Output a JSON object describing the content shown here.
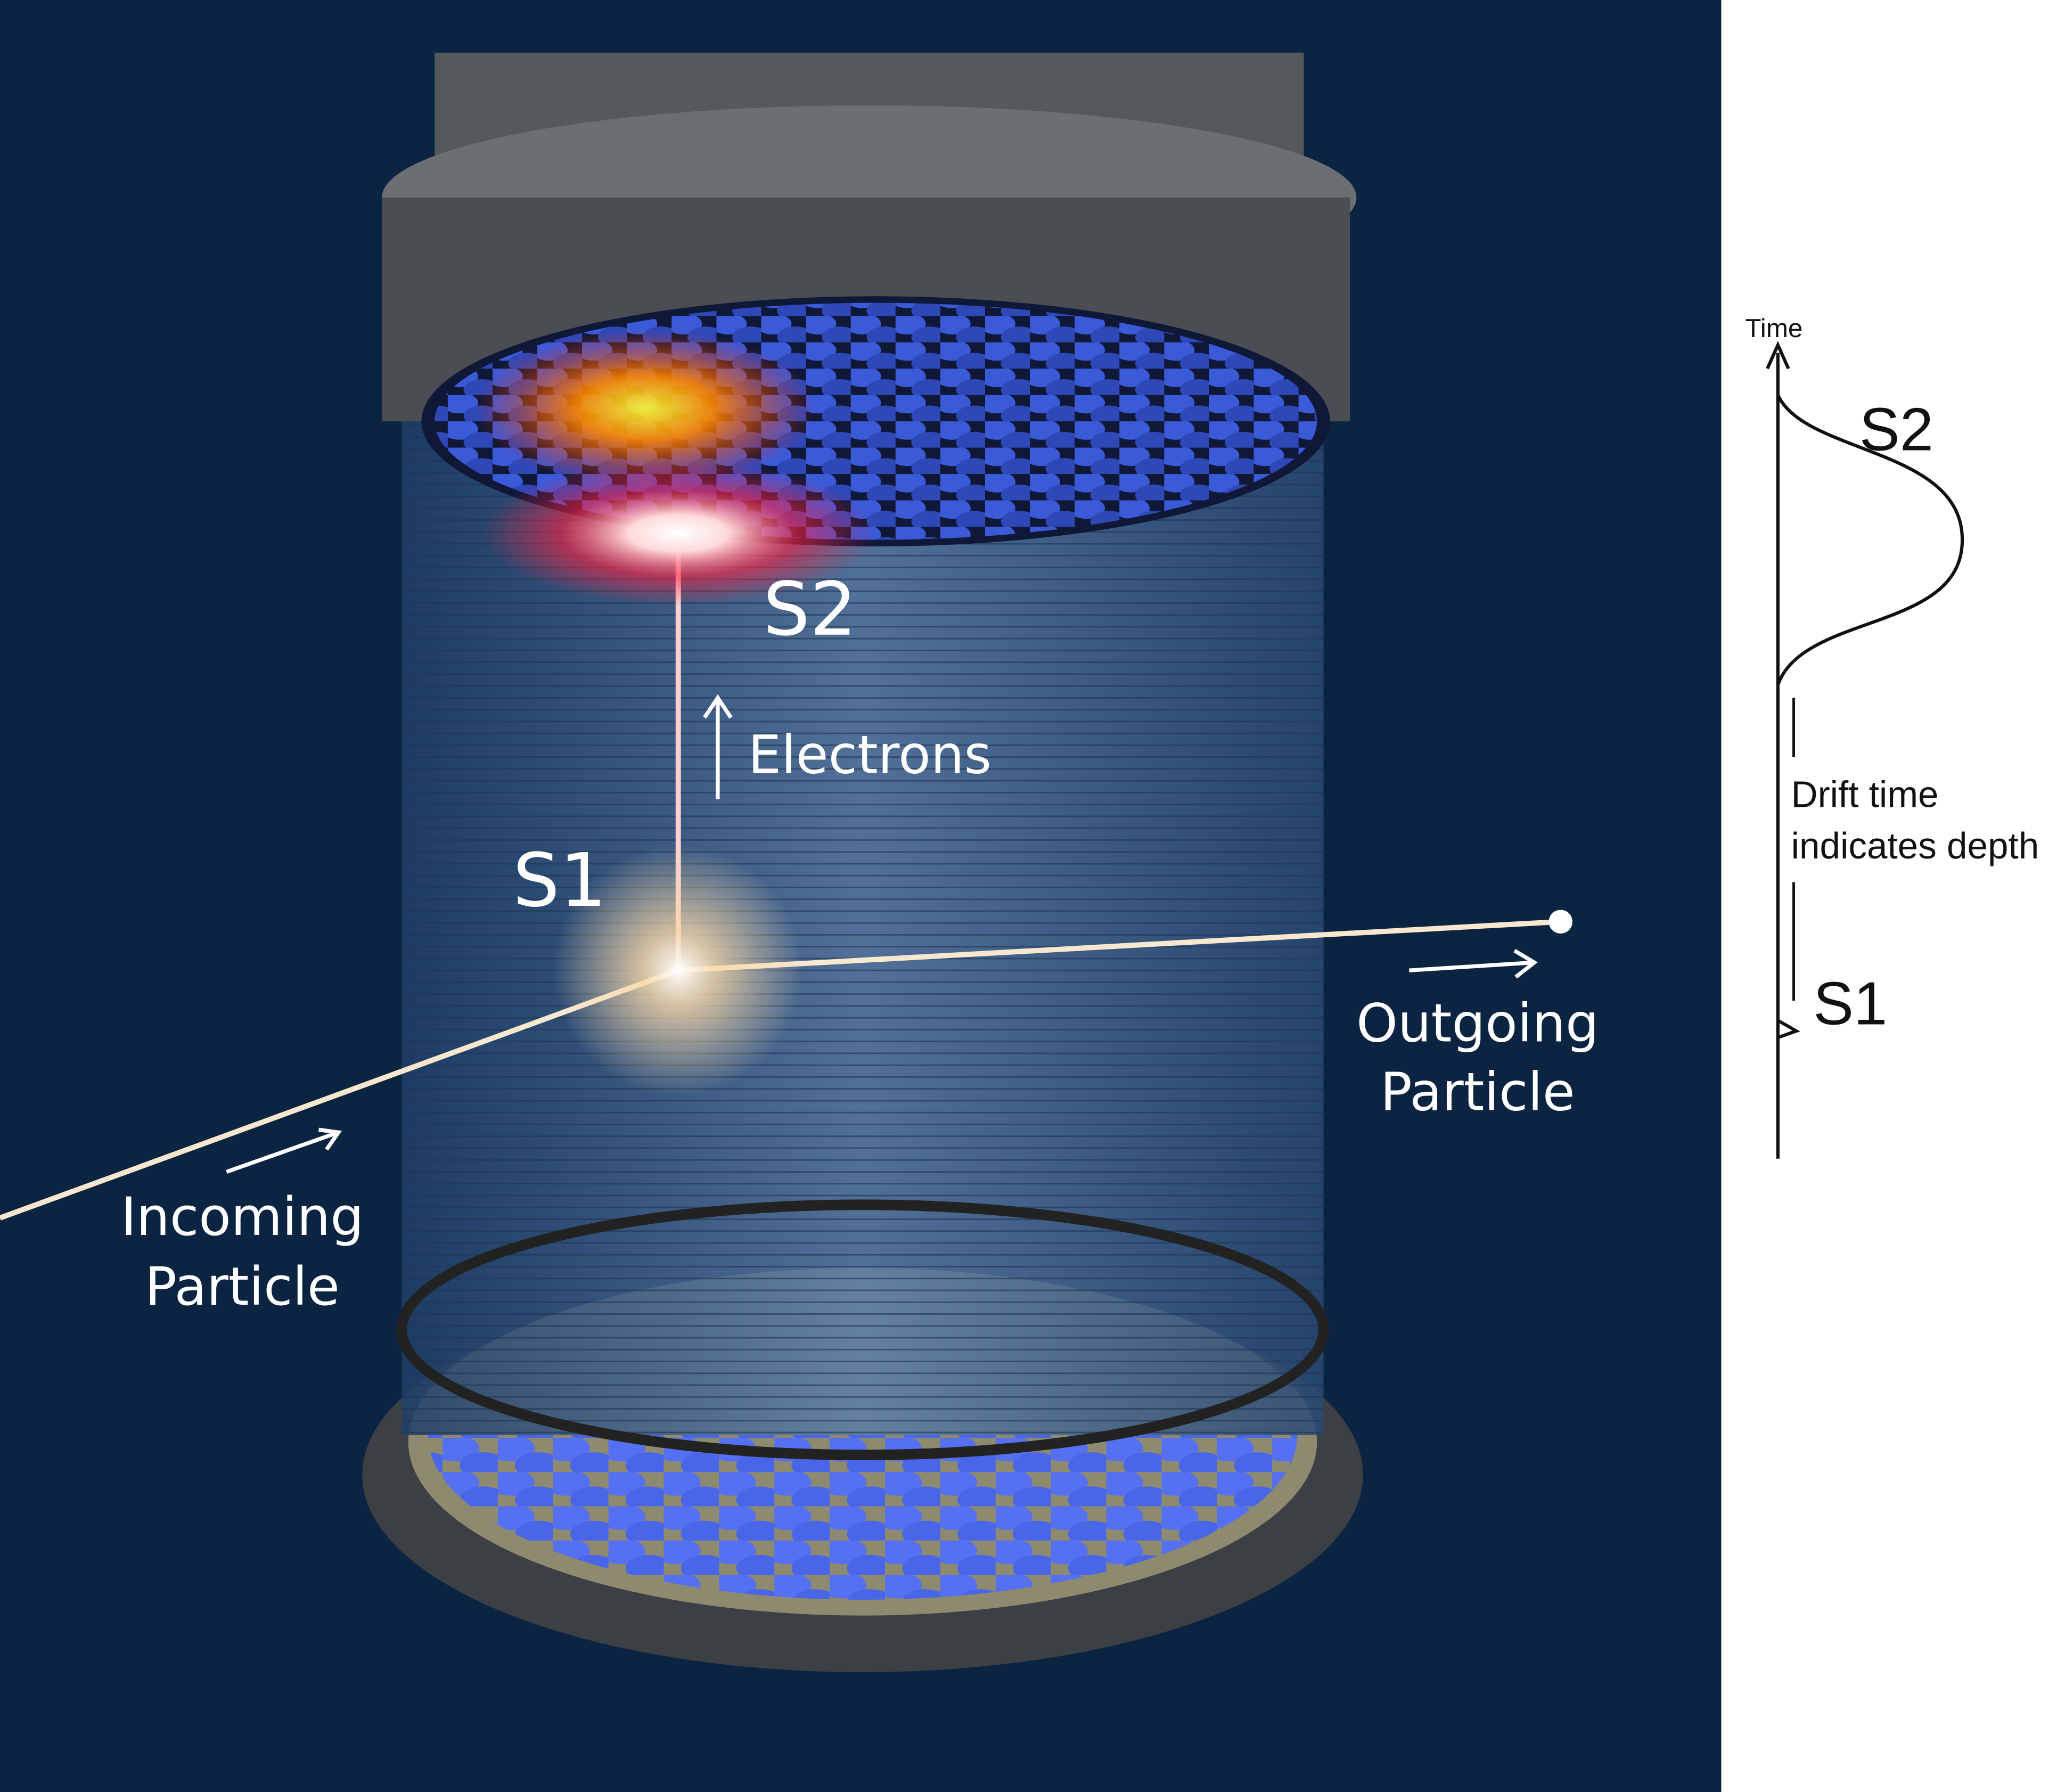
{
  "labels": {
    "s2": "S2",
    "electrons": "Electrons",
    "s1": "S1",
    "outgoing": [
      "Outgoing",
      "Particle"
    ],
    "incoming": [
      "Incoming",
      "Particle"
    ]
  },
  "plot": {
    "axis_label": "Time",
    "s2": "S2",
    "s1": "S1",
    "drift": [
      "Drift time",
      "indicates depth"
    ]
  }
}
